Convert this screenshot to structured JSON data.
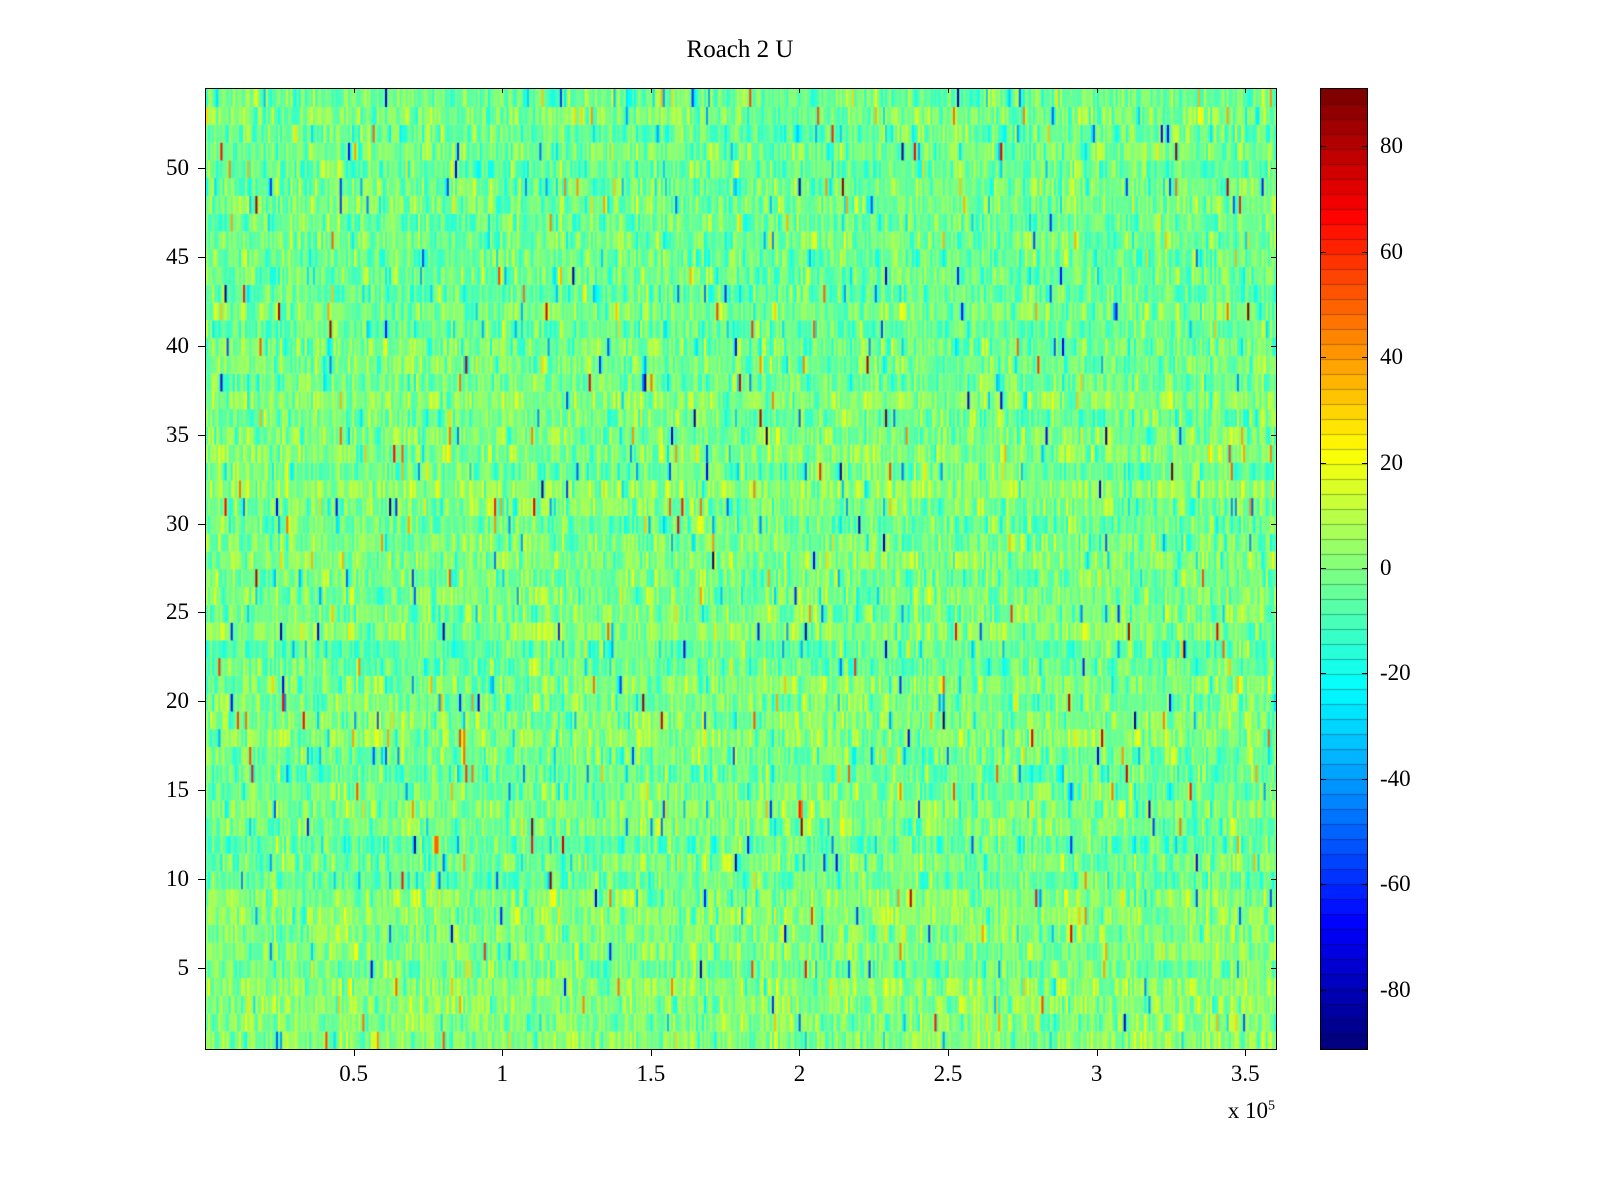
{
  "chart_data": {
    "type": "heatmap",
    "title": "Roach 2 U",
    "xlabel": "",
    "ylabel": "",
    "xlim": [
      0,
      3.6
    ],
    "ylim": [
      0.5,
      54.5
    ],
    "x_ticks": {
      "values": [
        0.5,
        1,
        1.5,
        2,
        2.5,
        3,
        3.5
      ],
      "labels": [
        "0.5",
        "1",
        "1.5",
        "2",
        "2.5",
        "3",
        "3.5"
      ]
    },
    "x_scale": {
      "prefix": "x 10",
      "exponent": "5"
    },
    "y_ticks": {
      "values": [
        5,
        10,
        15,
        20,
        25,
        30,
        35,
        40,
        45,
        50
      ],
      "labels": [
        "5",
        "10",
        "15",
        "20",
        "25",
        "30",
        "35",
        "40",
        "45",
        "50"
      ]
    },
    "colorbar": {
      "colormap": "jet",
      "levels": 64,
      "clim": [
        -91,
        91
      ],
      "tick_values": [
        80,
        60,
        40,
        20,
        0,
        -20,
        -40,
        -60,
        -80
      ],
      "tick_labels": [
        "80",
        "60",
        "40",
        "20",
        "0",
        "-20",
        "-40",
        "-60",
        "-80"
      ]
    },
    "grid": {
      "rows": 54,
      "cols": 520
    },
    "noise_model": {
      "description": "dense random noise heatmap centered near zero (green) with teal/yellow fluctuations and sparse red/blue spikes",
      "mean": -1,
      "std": 8.5,
      "row_offset_std": 2,
      "outlier_prob": 0.06,
      "outlier_std": 25,
      "spike_prob": 0.004,
      "spike_min": 40,
      "spike_max": 91,
      "seed": 20240601
    },
    "colors": {
      "axis": "#000000",
      "background": "#ffffff"
    },
    "legend": {
      "visible": false
    },
    "grid_lines": false
  }
}
